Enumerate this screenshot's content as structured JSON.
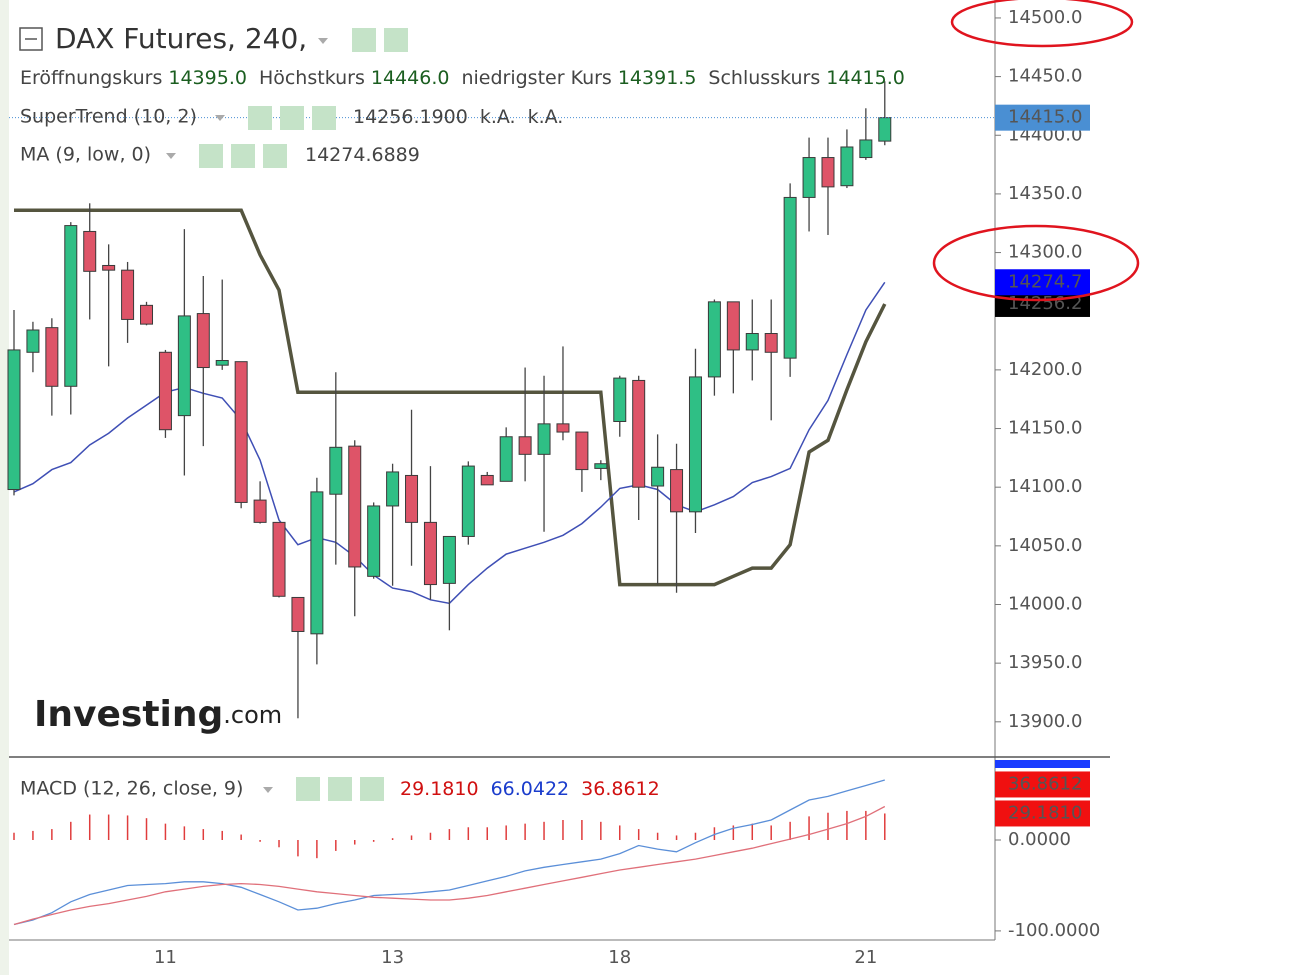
{
  "chart_data": [
    {
      "type": "candlestick",
      "title": "DAX Futures, 240,",
      "ohlc_legend": [
        [
          "Eröffnungskurs",
          "14395.0"
        ],
        [
          "Höchstkurs",
          "14446.0"
        ],
        [
          "niedrigster Kurs",
          "14391.5"
        ],
        [
          "Schlusskurs",
          "14415.0"
        ]
      ],
      "watermark": [
        "Investing",
        ".com"
      ],
      "categories": [
        null,
        null,
        null,
        null,
        null,
        null,
        null,
        null,
        "11",
        null,
        null,
        null,
        null,
        null,
        null,
        null,
        null,
        null,
        null,
        null,
        "13",
        null,
        null,
        null,
        null,
        null,
        null,
        null,
        null,
        null,
        null,
        null,
        "18",
        null,
        null,
        null,
        null,
        null,
        null,
        null,
        null,
        null,
        null,
        null,
        null,
        "21",
        null
      ],
      "open": [
        14098,
        14215,
        14236,
        14186,
        14318,
        14289,
        14285,
        14255,
        14215,
        14161,
        14248,
        14204,
        14207,
        14089,
        14070,
        14006,
        13975,
        14094,
        14135,
        14024,
        14084,
        14110,
        14070,
        14018,
        14058,
        14110,
        14105,
        14143,
        14128,
        14154,
        14147,
        14116,
        14156,
        14191,
        14101,
        14115,
        14079,
        14194,
        14258,
        14217,
        14231,
        14210,
        14347,
        14381,
        14357,
        14381,
        14395
      ],
      "high": [
        14251,
        14241,
        14244,
        14326,
        14342,
        14307,
        14292,
        14258,
        14217,
        14320,
        14280,
        14277,
        14207,
        14105,
        14070,
        14006,
        14108,
        14198,
        14140,
        14087,
        14120,
        14166,
        14118,
        14058,
        14122,
        14113,
        14151,
        14202,
        14195,
        14220,
        14147,
        14123,
        14195,
        14195,
        14145,
        14137,
        14218,
        14260,
        14258,
        14260,
        14260,
        14359,
        14398,
        14398,
        14405,
        14423,
        14446
      ],
      "low": [
        14093,
        14198,
        14161,
        14162,
        14243,
        14203,
        14223,
        14238,
        14142,
        14110,
        14135,
        14200,
        14082,
        14069,
        14006,
        13903,
        13949,
        14034,
        13990,
        14022,
        14016,
        14033,
        14004,
        13978,
        14051,
        14102,
        14105,
        14105,
        14062,
        14140,
        14096,
        14106,
        14143,
        14072,
        14017,
        14010,
        14061,
        14178,
        14180,
        14191,
        14157,
        14194,
        14318,
        14315,
        14355,
        14379,
        14391.5
      ],
      "close": [
        14217,
        14234,
        14186,
        14323,
        14284,
        14285,
        14243,
        14239,
        14149,
        14246,
        14202,
        14208,
        14087,
        14070,
        14007,
        13977,
        14096,
        14134,
        14032,
        14084,
        14113,
        14070,
        14017,
        14058,
        14118,
        14102,
        14143,
        14128,
        14154,
        14147,
        14115,
        14120,
        14193,
        14100,
        14117,
        14079,
        14194,
        14258,
        14217,
        14231,
        14215,
        14347,
        14381,
        14356,
        14390,
        14396,
        14415
      ],
      "up_color": "#2fbf85",
      "down_color": "#de5468",
      "last_label": "14415.0",
      "last_color": "#4a8fd3",
      "series": [
        {
          "name": "SuperTrend (10, 2)",
          "color": "#55553f",
          "legend_values": [
            "14256.1900",
            "k.A.",
            "k.A."
          ],
          "legend_color": "#111111",
          "last_label": "14256.2",
          "label_color": "#000000",
          "values": [
            14336,
            14336,
            14336,
            14336,
            14336,
            14336,
            14336,
            14336,
            14336,
            14336,
            14336,
            14336,
            14336,
            14298,
            14268,
            14181,
            14181,
            14181,
            14181,
            14181,
            14181,
            14181,
            14181,
            14181,
            14181,
            14181,
            14181,
            14181,
            14181,
            14181,
            14181,
            14181,
            14017,
            14017,
            14017,
            14017,
            14017,
            14017,
            14024,
            14031,
            14031,
            14051,
            14130,
            14140,
            14183,
            14224,
            14256.19
          ]
        },
        {
          "name": "MA (9, low, 0)",
          "color": "#3f4fb5",
          "legend_values": [
            "14274.6889"
          ],
          "legend_color": "#1a1acc",
          "last_label": "14274.7",
          "label_color": "#0000ff",
          "values": [
            14096,
            14103,
            14115,
            14121,
            14136,
            14146,
            14159,
            14170,
            14181,
            14185,
            14180,
            14176,
            14157,
            14123,
            14072,
            14051,
            14057,
            14053,
            14041,
            14025,
            14014,
            14011,
            14004,
            14001,
            14017,
            14031,
            14043,
            14048,
            14053,
            14059,
            14069,
            14083,
            14099,
            14102,
            14098,
            14085,
            14079,
            14085,
            14092,
            14104,
            14109,
            14116,
            14149,
            14174,
            14213,
            14251,
            14274.6889
          ]
        }
      ],
      "ylim": [
        13870,
        14515.3
      ],
      "yticks": [
        {
          "value": 13900,
          "label": "13900.0"
        },
        {
          "value": 13950,
          "label": "13950.0"
        },
        {
          "value": 14000,
          "label": "14000.0"
        },
        {
          "value": 14050,
          "label": "14050.0"
        },
        {
          "value": 14100,
          "label": "14100.0"
        },
        {
          "value": 14150,
          "label": "14150.0"
        },
        {
          "value": 14200,
          "label": "14200.0"
        },
        {
          "value": 14250,
          "label": "14250.0"
        },
        {
          "value": 14300,
          "label": "14300.0"
        },
        {
          "value": 14350,
          "label": "14350.0"
        },
        {
          "value": 14400,
          "label": "14400.0"
        },
        {
          "value": 14450,
          "label": "14450.0"
        },
        {
          "value": 14500,
          "label": "14500.0"
        }
      ]
    },
    {
      "type": "macd",
      "title": "MACD (12, 26, close, 9)",
      "series": [
        {
          "style": "bar",
          "color": "#e03c3c",
          "legend_value": "29.1810",
          "last_label": "29.1810",
          "values": [
            8,
            10,
            12,
            20,
            28,
            28,
            27,
            24,
            18,
            15,
            12,
            10,
            6,
            -2,
            -8,
            -18,
            -20,
            -12,
            -5,
            -2,
            2,
            5,
            8,
            12,
            14,
            14,
            16,
            18,
            20,
            22,
            22,
            20,
            16,
            12,
            8,
            5,
            8,
            14,
            16,
            18,
            16,
            20,
            26,
            30,
            32,
            32,
            29.181
          ]
        },
        {
          "style": "line",
          "color": "#5b8fd8",
          "legend_value": "66.0422",
          "values": [
            -93,
            -88,
            -80,
            -68,
            -60,
            -55,
            -50,
            -49,
            -48,
            -46,
            -46,
            -48,
            -52,
            -60,
            -68,
            -77,
            -75,
            -70,
            -66,
            -61,
            -60,
            -59,
            -57,
            -55,
            -50,
            -45,
            -40,
            -34,
            -30,
            -27,
            -24,
            -21,
            -15,
            -6,
            -10,
            -13,
            -3,
            6,
            13,
            17,
            22,
            33,
            44,
            48,
            54,
            60,
            66.0422
          ]
        },
        {
          "style": "line",
          "color": "#e0707a",
          "legend_value": "36.8612",
          "last_label": "36.8612",
          "values": [
            -93,
            -87,
            -82,
            -77,
            -73,
            -70,
            -66,
            -62,
            -57,
            -54,
            -51,
            -49,
            -48,
            -49,
            -51,
            -54,
            -57,
            -59,
            -61,
            -63,
            -64,
            -65,
            -66,
            -66,
            -64,
            -61,
            -57,
            -53,
            -49,
            -45,
            -41,
            -37,
            -33,
            -30,
            -27,
            -24,
            -21,
            -17,
            -13,
            -9,
            -4,
            1,
            6,
            12,
            18,
            26,
            36.8612
          ]
        }
      ],
      "ylim": [
        -110,
        88
      ],
      "yticks": [
        {
          "value": 0,
          "label": "0.0000"
        },
        {
          "value": -100,
          "label": "-100.0000"
        }
      ]
    }
  ]
}
